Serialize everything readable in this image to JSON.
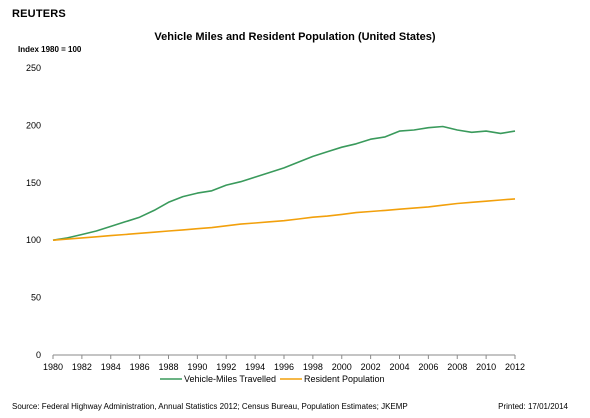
{
  "header": {
    "brand": "REUTERS",
    "index_note": "Index 1980 = 100"
  },
  "footer": {
    "source": "Source: Federal Highway Administration, Annual Statistics 2012; Census Bureau, Population Estimates; JKEMP",
    "printed": "Printed: 17/01/2014"
  },
  "chart_data": {
    "type": "line",
    "title": "Vehicle Miles and Resident Population (United States)",
    "xlabel": "",
    "ylabel": "",
    "x": [
      1980,
      1981,
      1982,
      1983,
      1984,
      1985,
      1986,
      1987,
      1988,
      1989,
      1990,
      1991,
      1992,
      1993,
      1994,
      1995,
      1996,
      1997,
      1998,
      1999,
      2000,
      2001,
      2002,
      2003,
      2004,
      2005,
      2006,
      2007,
      2008,
      2009,
      2010,
      2011,
      2012
    ],
    "x_ticks": [
      "1980",
      "1982",
      "1984",
      "1986",
      "1988",
      "1990",
      "1992",
      "1994",
      "1996",
      "1998",
      "2000",
      "2002",
      "2004",
      "2006",
      "2008",
      "2010",
      "2012"
    ],
    "y_ticks": [
      "0",
      "50",
      "100",
      "150",
      "200",
      "250"
    ],
    "xlim": [
      1980,
      2012
    ],
    "ylim": [
      0,
      250
    ],
    "grid": false,
    "legend_position": "bottom",
    "series": [
      {
        "name": "Vehicle-Miles Travelled",
        "color": "#3a9a5c",
        "values": [
          100,
          102,
          105,
          108,
          112,
          116,
          120,
          126,
          133,
          138,
          141,
          143,
          148,
          151,
          155,
          159,
          163,
          168,
          173,
          177,
          181,
          184,
          188,
          190,
          195,
          196,
          198,
          199,
          196,
          194,
          195,
          193,
          195
        ]
      },
      {
        "name": "Resident Population",
        "color": "#f2a00c",
        "values": [
          100,
          101,
          102,
          103,
          104,
          105,
          106,
          107,
          108,
          109,
          110,
          111,
          112.5,
          114,
          115,
          116,
          117,
          118.5,
          120,
          121,
          122.5,
          124,
          125,
          126,
          127,
          128,
          129,
          130.5,
          132,
          133,
          134,
          135,
          136
        ]
      }
    ]
  }
}
